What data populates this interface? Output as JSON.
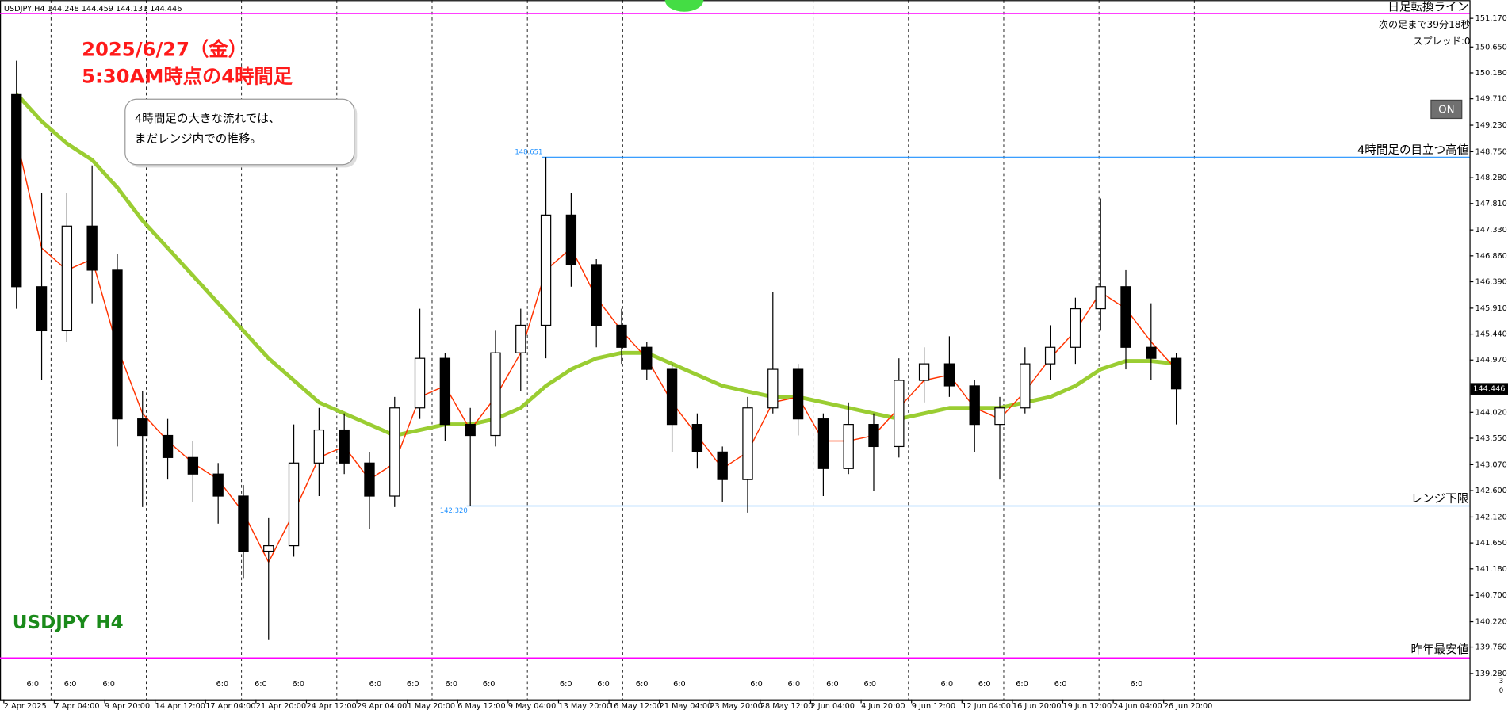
{
  "chart_data": {
    "type": "candlestick",
    "header": "USDJPY,H4  144.248 144.459 144.131 144.446",
    "title_line1": "2025/6/27（金）",
    "title_line2": "5:30AM時点の4時間足",
    "callout_line1": "4時間足の大きな流れでは、",
    "callout_line2": "まだレンジ内での推移。",
    "symbol_label": "USDJPY H4",
    "timer_text": "次の足まで39分18秒",
    "spread_text": "スプレッド:0",
    "button_text": "ON",
    "volume_scale": [
      "3",
      "0"
    ],
    "categories": [
      "2 Apr 2025",
      null,
      "7 Apr 04:00",
      null,
      "9 Apr 20:00",
      null,
      "14 Apr 12:00",
      null,
      "17 Apr 04:00",
      null,
      "21 Apr 20:00",
      null,
      "24 Apr 12:00",
      null,
      "29 Apr 04:00",
      null,
      "1 May 20:00",
      null,
      "6 May 12:00",
      null,
      "9 May 04:00",
      null,
      "13 May 20:00",
      null,
      "16 May 12:00",
      null,
      "21 May 04:00",
      null,
      "23 May 20:00",
      null,
      "28 May 12:00",
      null,
      "2 Jun 04:00",
      null,
      "4 Jun 20:00",
      null,
      "9 Jun 12:00",
      null,
      "12 Jun 04:00",
      null,
      "16 Jun 20:00",
      null,
      "19 Jun 12:00",
      null,
      "24 Jun 04:00",
      null,
      "26 Jun 20:00"
    ],
    "open": [
      149.8,
      146.3,
      145.5,
      147.4,
      146.6,
      143.9,
      143.6,
      143.2,
      142.9,
      142.5,
      141.5,
      141.6,
      143.1,
      143.7,
      143.1,
      142.5,
      144.1,
      145.0,
      143.8,
      143.6,
      145.1,
      145.6,
      147.6,
      146.7,
      145.6,
      145.2,
      144.8,
      143.8,
      143.3,
      142.8,
      144.1,
      144.8,
      143.9,
      143.0,
      143.8,
      143.4,
      144.6,
      144.9,
      144.5,
      143.8,
      144.1,
      144.9,
      145.2,
      145.9,
      146.3,
      145.2,
      145.0
    ],
    "high": [
      150.4,
      148.0,
      148.0,
      148.5,
      146.9,
      144.4,
      143.9,
      143.5,
      143.1,
      142.7,
      142.1,
      143.8,
      144.1,
      144.0,
      143.3,
      144.3,
      145.9,
      145.1,
      144.1,
      145.5,
      145.9,
      148.651,
      148.0,
      146.8,
      145.9,
      145.3,
      144.9,
      144.0,
      143.4,
      144.3,
      146.2,
      144.9,
      144.0,
      144.2,
      144.0,
      145.0,
      145.2,
      145.4,
      144.6,
      144.3,
      145.2,
      145.6,
      146.1,
      147.9,
      146.6,
      146.0,
      145.1
    ],
    "low": [
      145.9,
      144.6,
      145.3,
      146.0,
      143.4,
      142.3,
      142.8,
      142.4,
      142.0,
      141.0,
      139.9,
      141.4,
      142.5,
      142.9,
      141.9,
      142.3,
      143.9,
      143.5,
      142.32,
      143.4,
      144.4,
      145.0,
      146.3,
      145.2,
      144.9,
      144.6,
      143.3,
      143.0,
      142.4,
      142.2,
      144.0,
      143.6,
      142.5,
      142.9,
      142.6,
      143.2,
      144.2,
      144.3,
      143.3,
      142.8,
      144.0,
      144.6,
      144.9,
      145.5,
      144.8,
      144.6,
      143.8
    ],
    "close": [
      146.3,
      145.5,
      147.4,
      146.6,
      143.9,
      143.6,
      143.2,
      142.9,
      142.5,
      141.5,
      141.6,
      143.1,
      143.7,
      143.1,
      142.5,
      144.1,
      145.0,
      143.8,
      143.6,
      145.1,
      145.6,
      147.6,
      146.7,
      145.6,
      145.2,
      144.8,
      143.8,
      143.3,
      142.8,
      144.1,
      144.8,
      143.9,
      143.0,
      143.8,
      143.4,
      144.6,
      144.9,
      144.5,
      143.8,
      144.1,
      144.9,
      145.2,
      145.9,
      146.3,
      145.2,
      145.0,
      144.446
    ],
    "moving_averages": [
      {
        "color": "#9acd32",
        "width": 4,
        "values": [
          149.8,
          149.3,
          148.9,
          148.6,
          148.1,
          147.5,
          147.0,
          146.5,
          146.0,
          145.5,
          145.0,
          144.6,
          144.2,
          144.0,
          143.8,
          143.6,
          143.7,
          143.8,
          143.8,
          143.9,
          144.1,
          144.5,
          144.8,
          145.0,
          145.1,
          145.1,
          144.9,
          144.7,
          144.5,
          144.4,
          144.3,
          144.3,
          144.2,
          144.1,
          144.0,
          143.9,
          144.0,
          144.1,
          144.1,
          144.1,
          144.2,
          144.3,
          144.5,
          144.8,
          144.95,
          144.95,
          144.9
        ]
      },
      {
        "color": "#ff3300",
        "width": 1.2,
        "values": [
          149.0,
          147.0,
          146.6,
          146.8,
          145.2,
          144.0,
          143.5,
          143.1,
          142.8,
          142.2,
          141.3,
          142.2,
          143.2,
          143.4,
          142.8,
          143.1,
          144.3,
          144.5,
          143.7,
          144.3,
          145.1,
          146.6,
          147.0,
          146.1,
          145.5,
          145.0,
          144.2,
          143.6,
          143.0,
          143.3,
          144.2,
          144.3,
          143.5,
          143.5,
          143.6,
          144.1,
          144.6,
          144.7,
          144.1,
          143.9,
          144.4,
          145.0,
          145.5,
          146.2,
          145.9,
          145.3,
          144.8
        ]
      }
    ],
    "levels": [
      {
        "name": "日足転換ライン",
        "value": 151.26,
        "color": "#ff00ff"
      },
      {
        "name": "4時間足の目立つ高値",
        "value": 148.651,
        "label": "148.651",
        "color": "#1e90ff"
      },
      {
        "name": "レンジ下限",
        "value": 142.32,
        "label": "142.320",
        "color": "#1e90ff"
      },
      {
        "name": "昨年最安値",
        "value": 139.56,
        "color": "#ff00ff"
      }
    ],
    "session_labels": [
      "6:0",
      "6:0",
      "6:0",
      "6:0",
      "6:0",
      "6:0",
      "6:0",
      "6:0",
      "6:0",
      "6:0",
      "6:0",
      "6:0",
      "6:0",
      "6:0",
      "6:0",
      "6:0",
      "6:0",
      "6:0",
      "6:0",
      "6:0",
      "6:0",
      "6:0",
      "6:0"
    ],
    "ylim": [
      138.81,
      151.5
    ],
    "yticks": [
      {
        "value": 151.17,
        "label": "151.170"
      },
      {
        "value": 150.65,
        "label": "150.650"
      },
      {
        "value": 150.18,
        "label": "150.180"
      },
      {
        "value": 149.71,
        "label": "149.710"
      },
      {
        "value": 149.23,
        "label": "149.230"
      },
      {
        "value": 148.75,
        "label": "148.750"
      },
      {
        "value": 148.28,
        "label": "148.280"
      },
      {
        "value": 147.81,
        "label": "147.810"
      },
      {
        "value": 147.33,
        "label": "147.330"
      },
      {
        "value": 146.86,
        "label": "146.860"
      },
      {
        "value": 146.39,
        "label": "146.390"
      },
      {
        "value": 145.91,
        "label": "145.910"
      },
      {
        "value": 145.44,
        "label": "145.440"
      },
      {
        "value": 144.97,
        "label": "144.970"
      },
      {
        "value": 144.02,
        "label": "144.020"
      },
      {
        "value": 143.55,
        "label": "143.550"
      },
      {
        "value": 143.07,
        "label": "143.070"
      },
      {
        "value": 142.6,
        "label": "142.600"
      },
      {
        "value": 142.12,
        "label": "142.120"
      },
      {
        "value": 141.65,
        "label": "141.650"
      },
      {
        "value": 141.18,
        "label": "141.180"
      },
      {
        "value": 140.7,
        "label": "140.700"
      },
      {
        "value": 140.22,
        "label": "140.220"
      },
      {
        "value": 139.76,
        "label": "139.760"
      },
      {
        "value": 139.28,
        "label": "139.280"
      }
    ],
    "grid": false
  }
}
